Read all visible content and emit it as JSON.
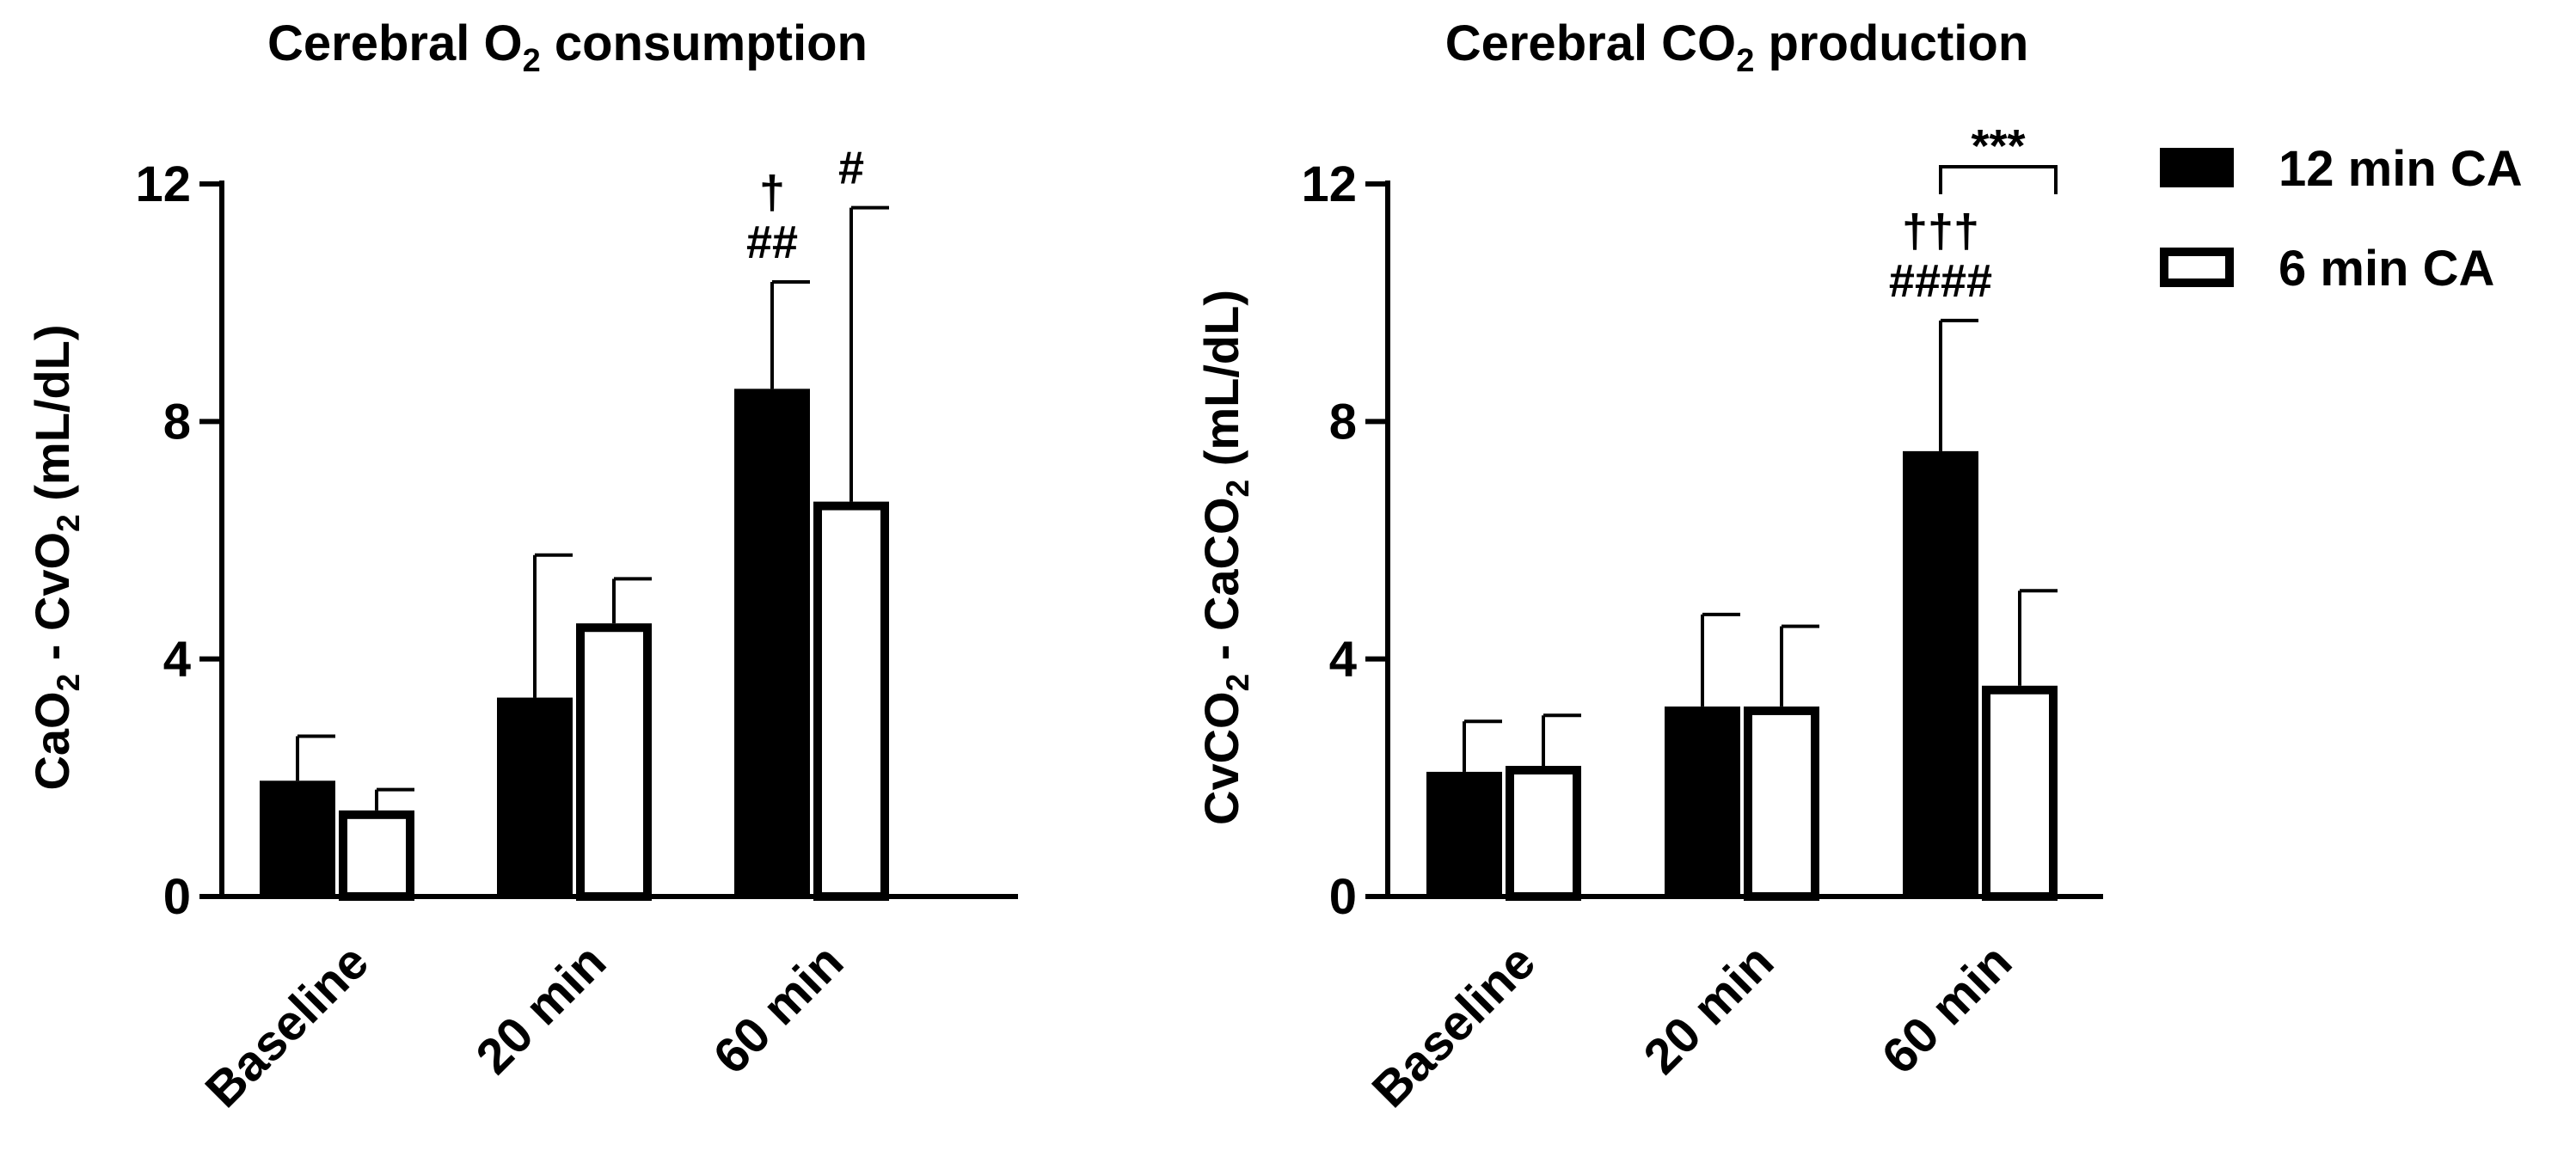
{
  "legend": {
    "position": "right",
    "items": [
      {
        "label": "12 min CA",
        "fill": "#000000",
        "stroke": "#000000"
      },
      {
        "label": "6 min CA",
        "fill": "#ffffff",
        "stroke": "#000000"
      }
    ]
  },
  "chart_data": [
    {
      "type": "bar",
      "title": "Cerebral O₂ consumption",
      "ylabel": "CaO₂ - CvO₂ (mL/dL)",
      "xlabel": "",
      "ylim": [
        0,
        12
      ],
      "yticks": [
        "0",
        "4",
        "8",
        "12"
      ],
      "grid": false,
      "categories": [
        "Baseline",
        "20 min",
        "60 min"
      ],
      "series": [
        {
          "name": "12 min CA",
          "values": [
            1.95,
            3.35,
            8.55
          ],
          "errors": [
            0.75,
            2.4,
            1.8
          ]
        },
        {
          "name": "6 min CA",
          "values": [
            1.45,
            4.6,
            6.65
          ],
          "errors": [
            0.35,
            0.75,
            4.95
          ]
        }
      ],
      "annotations": [
        {
          "category": "60 min",
          "series": "12 min CA",
          "lines": [
            "†",
            "##"
          ]
        },
        {
          "category": "60 min",
          "series": "6 min CA",
          "lines": [
            "#"
          ]
        }
      ]
    },
    {
      "type": "bar",
      "title": "Cerebral CO₂ production",
      "ylabel": "CvCO₂ - CaCO₂ (mL/dL)",
      "xlabel": "",
      "ylim": [
        0,
        12
      ],
      "yticks": [
        "0",
        "4",
        "8",
        "12"
      ],
      "grid": false,
      "categories": [
        "Baseline",
        "20 min",
        "60 min"
      ],
      "series": [
        {
          "name": "12 min CA",
          "values": [
            2.1,
            3.2,
            7.5
          ],
          "errors": [
            0.85,
            1.55,
            2.2
          ]
        },
        {
          "name": "6 min CA",
          "values": [
            2.2,
            3.2,
            3.55
          ],
          "errors": [
            0.85,
            1.35,
            1.6
          ]
        }
      ],
      "annotations": [
        {
          "category": "60 min",
          "series": "12 min CA",
          "lines": [
            "†††",
            "####"
          ]
        }
      ],
      "brackets": [
        {
          "category": "60 min",
          "label": "***"
        }
      ]
    }
  ]
}
